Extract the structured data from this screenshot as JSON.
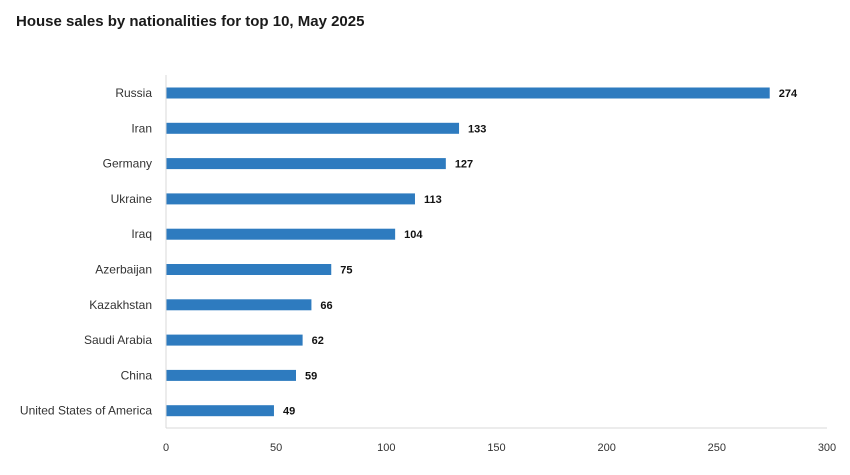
{
  "chart_data": {
    "type": "bar",
    "orientation": "horizontal",
    "title": "House sales by nationalities for top 10, May 2025",
    "categories": [
      "Russia",
      "Iran",
      "Germany",
      "Ukraine",
      "Iraq",
      "Azerbaijan",
      "Kazakhstan",
      "Saudi Arabia",
      "China",
      "United States of America"
    ],
    "values": [
      274,
      133,
      127,
      113,
      104,
      75,
      66,
      62,
      59,
      49
    ],
    "xlim": [
      0,
      300
    ],
    "xticks": [
      0,
      50,
      100,
      150,
      200,
      250,
      300
    ],
    "xlabel": "",
    "ylabel": "",
    "bar_color": "#2e7bbf",
    "data_labels": true,
    "grid": false,
    "legend": "none"
  }
}
